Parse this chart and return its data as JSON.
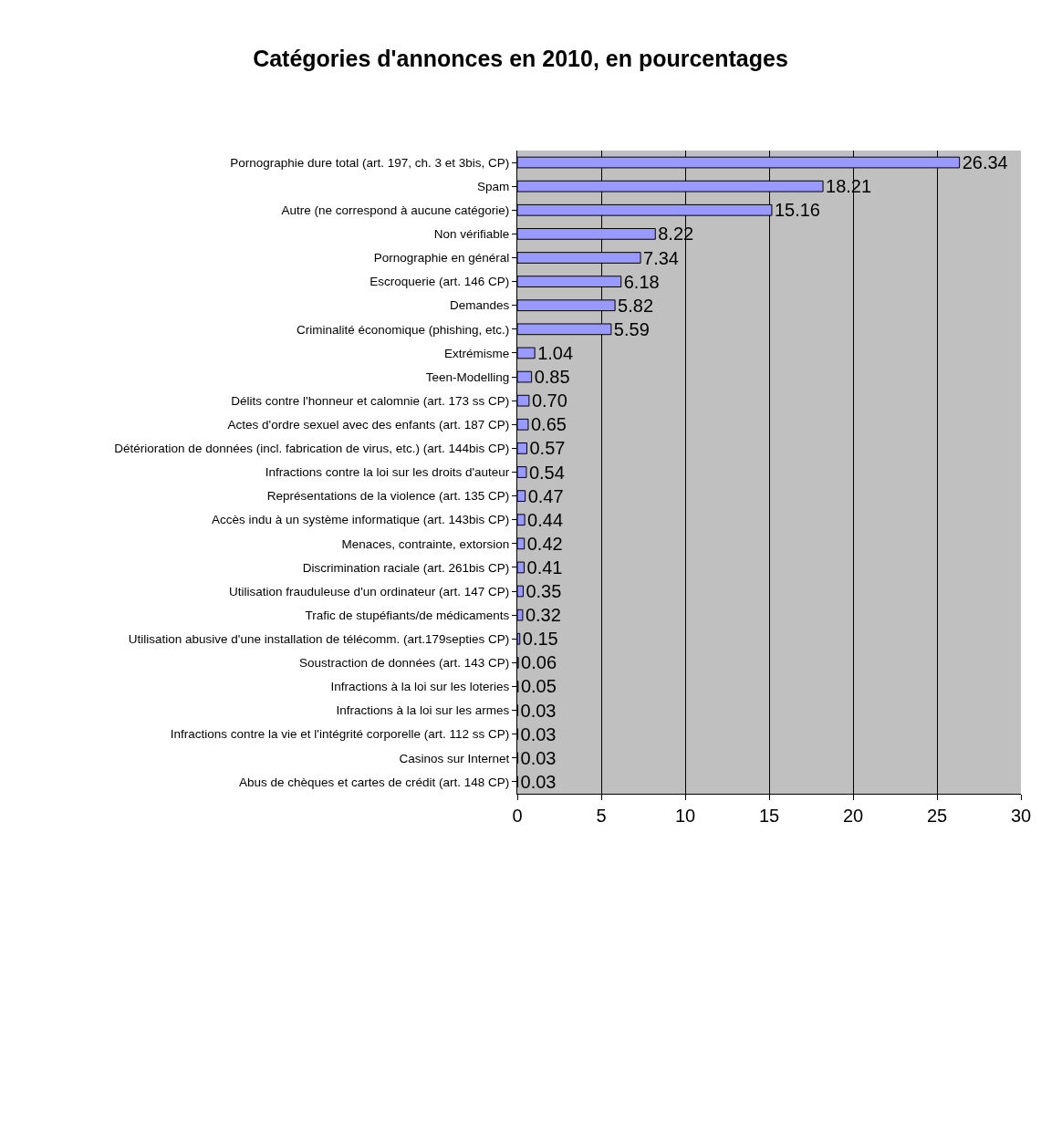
{
  "chart_data": {
    "type": "bar",
    "orientation": "horizontal",
    "title": "Catégories d'annonces en 2010, en pourcentages",
    "categories": [
      "Pornographie dure total (art. 197, ch. 3 et 3bis, CP)",
      "Spam",
      "Autre (ne correspond à aucune catégorie)",
      "Non vérifiable",
      "Pornographie en général",
      "Escroquerie (art. 146 CP)",
      "Demandes",
      "Criminalité économique (phishing, etc.)",
      "Extrémisme",
      "Teen-Modelling",
      "Délits contre l'honneur et calomnie (art. 173 ss CP)",
      "Actes d'ordre sexuel avec des enfants (art. 187 CP)",
      "Détérioration de données (incl. fabrication de virus, etc.) (art. 144bis CP)",
      "Infractions contre la loi sur les droits d'auteur",
      "Représentations de la violence (art. 135 CP)",
      "Accès indu à un système informatique (art. 143bis CP)",
      "Menaces, contrainte, extorsion",
      "Discrimination raciale (art. 261bis CP)",
      "Utilisation frauduleuse d'un ordinateur (art. 147 CP)",
      "Trafic de stupéfiants/de médicaments",
      "Utilisation abusive d'une installation de télécomm. (art.179septies CP)",
      "Soustraction de données (art. 143 CP)",
      "Infractions à la loi sur les loteries",
      "Infractions à la loi sur les armes",
      "Infractions contre la vie et l'intégrité corporelle (art. 112 ss CP)",
      "Casinos sur Internet",
      "Abus de chèques et cartes de crédit (art. 148 CP)"
    ],
    "values": [
      26.34,
      18.21,
      15.16,
      8.22,
      7.34,
      6.18,
      5.82,
      5.59,
      1.04,
      0.85,
      0.7,
      0.65,
      0.57,
      0.54,
      0.47,
      0.44,
      0.42,
      0.41,
      0.35,
      0.32,
      0.15,
      0.06,
      0.05,
      0.03,
      0.03,
      0.03,
      0.03
    ],
    "value_labels": [
      "26.34",
      "18.21",
      "15.16",
      "8.22",
      "7.34",
      "6.18",
      "5.82",
      "5.59",
      "1.04",
      "0.85",
      "0.70",
      "0.65",
      "0.57",
      "0.54",
      "0.47",
      "0.44",
      "0.42",
      "0.41",
      "0.35",
      "0.32",
      "0.15",
      "0.06",
      "0.05",
      "0.03",
      "0.03",
      "0.03",
      "0.03"
    ],
    "color": "#9999ff",
    "xlim": [
      0,
      30
    ],
    "xticks": [
      0,
      5,
      10,
      15,
      20,
      25,
      30
    ],
    "grid": "x"
  }
}
